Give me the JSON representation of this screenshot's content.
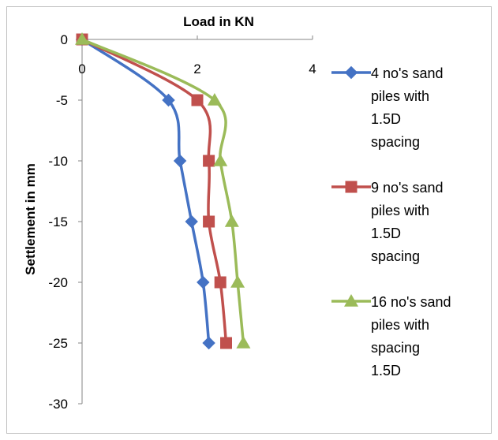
{
  "chart_data": {
    "type": "line",
    "title": "",
    "xlabel": "Load in KN",
    "ylabel": "Settlement in mm",
    "xlim": [
      0,
      4
    ],
    "ylim": [
      -30,
      0
    ],
    "x_ticks": [
      "0",
      "2",
      "4"
    ],
    "y_ticks": [
      "0",
      "-5",
      "-10",
      "-15",
      "-20",
      "-25",
      "-30"
    ],
    "x_axis_position": "top",
    "grid": false,
    "legend_position": "right",
    "series": [
      {
        "name": "4 no's sand piles with 1.5D spacing",
        "legend_lines": [
          "4 no's sand",
          "piles with",
          "1.5D",
          "spacing"
        ],
        "marker": "diamond",
        "color": "#4472C4",
        "points": [
          [
            0,
            0
          ],
          [
            1.5,
            -5
          ],
          [
            1.7,
            -10
          ],
          [
            1.9,
            -15
          ],
          [
            2.1,
            -20
          ],
          [
            2.2,
            -25
          ]
        ]
      },
      {
        "name": "9 no's sand piles with 1.5D spacing",
        "legend_lines": [
          "9 no's sand",
          "piles with",
          "1.5D",
          "spacing"
        ],
        "marker": "square",
        "color": "#C0504D",
        "points": [
          [
            0,
            0
          ],
          [
            2.0,
            -5
          ],
          [
            2.2,
            -10
          ],
          [
            2.2,
            -15
          ],
          [
            2.4,
            -20
          ],
          [
            2.5,
            -25
          ]
        ]
      },
      {
        "name": "16 no's sand piles with spacing 1.5D",
        "legend_lines": [
          "16 no's sand",
          "piles with",
          "spacing",
          "1.5D"
        ],
        "marker": "triangle",
        "color": "#9BBB59",
        "points": [
          [
            0,
            0
          ],
          [
            2.3,
            -5
          ],
          [
            2.4,
            -10
          ],
          [
            2.6,
            -15
          ],
          [
            2.7,
            -20
          ],
          [
            2.8,
            -25
          ]
        ]
      }
    ]
  }
}
